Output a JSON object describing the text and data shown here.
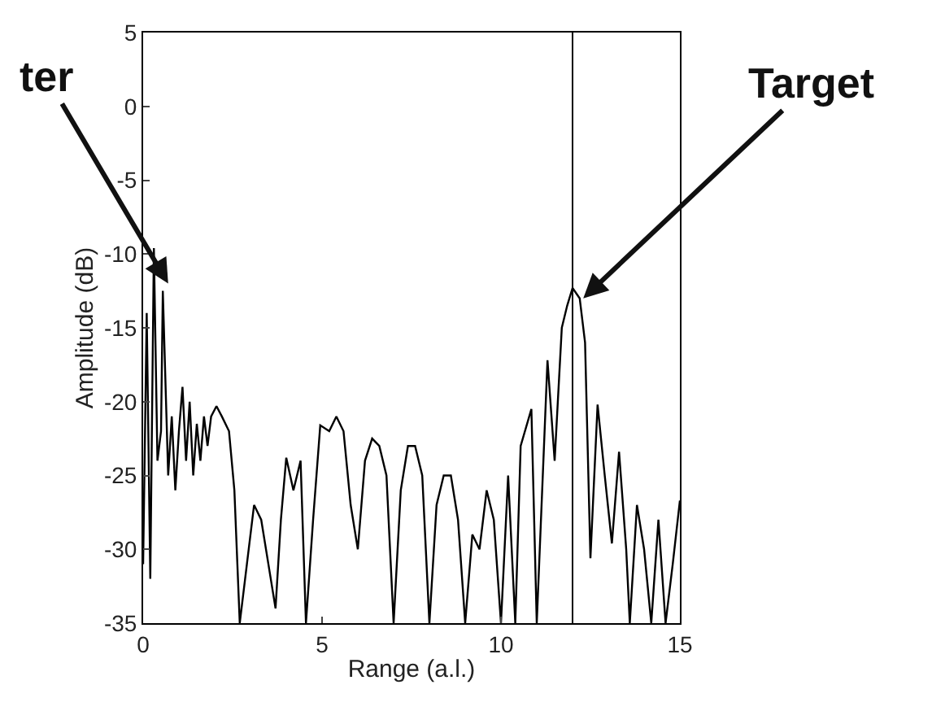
{
  "chart_data": {
    "type": "line",
    "xlabel": "Range (a.l.)",
    "ylabel": "Amplitude (dB)",
    "xlim": [
      0,
      15
    ],
    "xticks": [
      0,
      5,
      10,
      15
    ],
    "ylim": [
      -35,
      5
    ],
    "yticks": [
      -35,
      -30,
      -25,
      -20,
      -15,
      -10,
      -5,
      0,
      5
    ],
    "legend": false,
    "marker": "none",
    "line_style": "solid",
    "ref_lines": [
      {
        "axis": "x",
        "value": 12,
        "color": "#000000"
      }
    ],
    "annotations": [
      {
        "text": "ter",
        "x": 0.7,
        "y": -12
      },
      {
        "text": "Target",
        "x": 12.3,
        "y": -13
      }
    ],
    "series": [
      {
        "color": "#000000",
        "x": [
          0,
          0.1,
          0.2,
          0.3,
          0.4,
          0.5,
          0.55,
          0.7,
          0.8,
          0.9,
          1.0,
          1.1,
          1.2,
          1.3,
          1.4,
          1.5,
          1.6,
          1.7,
          1.8,
          1.9,
          2.05,
          2.2,
          2.4,
          2.55,
          2.7,
          2.9,
          3.1,
          3.3,
          3.5,
          3.7,
          3.85,
          4.0,
          4.2,
          4.4,
          4.55,
          4.75,
          4.95,
          5.2,
          5.4,
          5.6,
          5.8,
          6.0,
          6.2,
          6.4,
          6.6,
          6.8,
          7.0,
          7.2,
          7.4,
          7.6,
          7.8,
          8.0,
          8.2,
          8.4,
          8.6,
          8.8,
          9.0,
          9.2,
          9.4,
          9.6,
          9.8,
          10.0,
          10.2,
          10.4,
          10.55,
          10.85,
          11.0,
          11.3,
          11.5,
          11.7,
          11.85,
          12.0,
          12.2,
          12.35,
          12.5,
          12.7,
          12.9,
          13.1,
          13.3,
          13.5,
          13.6,
          13.8,
          14.0,
          14.2,
          14.4,
          14.6,
          14.8,
          15.0
        ],
        "values": [
          -31,
          -14,
          -32,
          -9.6,
          -24,
          -22,
          -12.5,
          -25,
          -21,
          -26,
          -22,
          -19,
          -24,
          -20,
          -25,
          -21.5,
          -24,
          -21,
          -23,
          -21,
          -20.3,
          -21,
          -22,
          -26,
          -35,
          -31,
          -27,
          -28,
          -31,
          -34,
          -28,
          -23.8,
          -26,
          -24,
          -35,
          -28,
          -21.6,
          -22,
          -21,
          -22,
          -27,
          -30,
          -24,
          -22.5,
          -23,
          -25,
          -35,
          -26,
          -23,
          -23,
          -25,
          -35,
          -27,
          -25,
          -25,
          -28,
          -35,
          -29,
          -30,
          -26,
          -28,
          -35,
          -25,
          -35,
          -23,
          -20.5,
          -35,
          -17.2,
          -24,
          -15,
          -13.5,
          -12.3,
          -13,
          -16,
          -30.6,
          -20.2,
          -25,
          -29.6,
          -23.4,
          -30,
          -35,
          -27,
          -30,
          -35,
          -28,
          -35,
          -31,
          -26.7
        ]
      }
    ]
  }
}
